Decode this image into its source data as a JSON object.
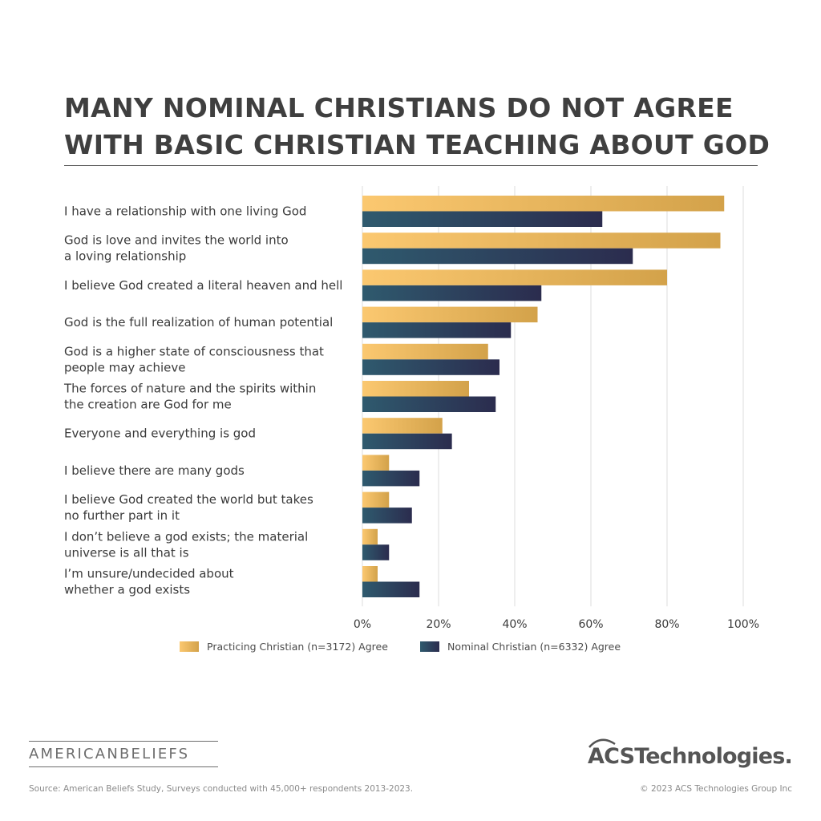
{
  "title_lines": [
    "MANY NOMINAL CHRISTIANS DO NOT AGREE",
    "WITH BASIC CHRISTIAN TEACHING ABOUT GOD"
  ],
  "colors": {
    "practicing_light": "#fbc870",
    "practicing_dark": "#d3a24a",
    "nominal_light": "#2f5a6e",
    "nominal_dark": "#2b2c4e",
    "grid": "#dcdcdc"
  },
  "chart_data": {
    "type": "bar",
    "orientation": "horizontal",
    "categories": [
      [
        "I have a relationship with one living God"
      ],
      [
        "God is love and invites the world into",
        "a loving relationship"
      ],
      [
        "I believe God created a literal heaven and hell"
      ],
      [
        "God is the full realization of human potential"
      ],
      [
        "God is a higher state of consciousness that",
        "people may achieve"
      ],
      [
        "The forces of nature and the spirits within",
        "the creation are God for me"
      ],
      [
        "Everyone and everything is god"
      ],
      [
        "I believe there are many gods"
      ],
      [
        "I believe God created the world but takes",
        "no further part in it"
      ],
      [
        "I don’t believe a god exists; the material",
        "universe is all that is"
      ],
      [
        "I’m unsure/undecided about",
        "whether a god exists"
      ]
    ],
    "series": [
      {
        "name": "Practicing Christian (n=3172) Agree",
        "values": [
          95,
          94,
          80,
          46,
          33,
          28,
          21,
          7,
          7,
          4,
          4
        ]
      },
      {
        "name": "Nominal Christian (n=6332) Agree",
        "values": [
          63,
          71,
          47,
          39,
          36,
          35,
          23.5,
          15,
          13,
          7,
          15
        ]
      }
    ],
    "xlim": [
      0,
      100
    ],
    "xticks": [
      "0%",
      "20%",
      "40%",
      "60%",
      "80%",
      "100%"
    ],
    "grid": true,
    "legend_position": "bottom"
  },
  "branding": {
    "left_name": "AMERICANBELIEFS",
    "right_name": "ACSTechnologies."
  },
  "footer": {
    "source": "Source: American Beliefs Study, Surveys conducted with 45,000+ respondents 2013-2023.",
    "copyright": "© 2023 ACS Technologies Group Inc"
  }
}
